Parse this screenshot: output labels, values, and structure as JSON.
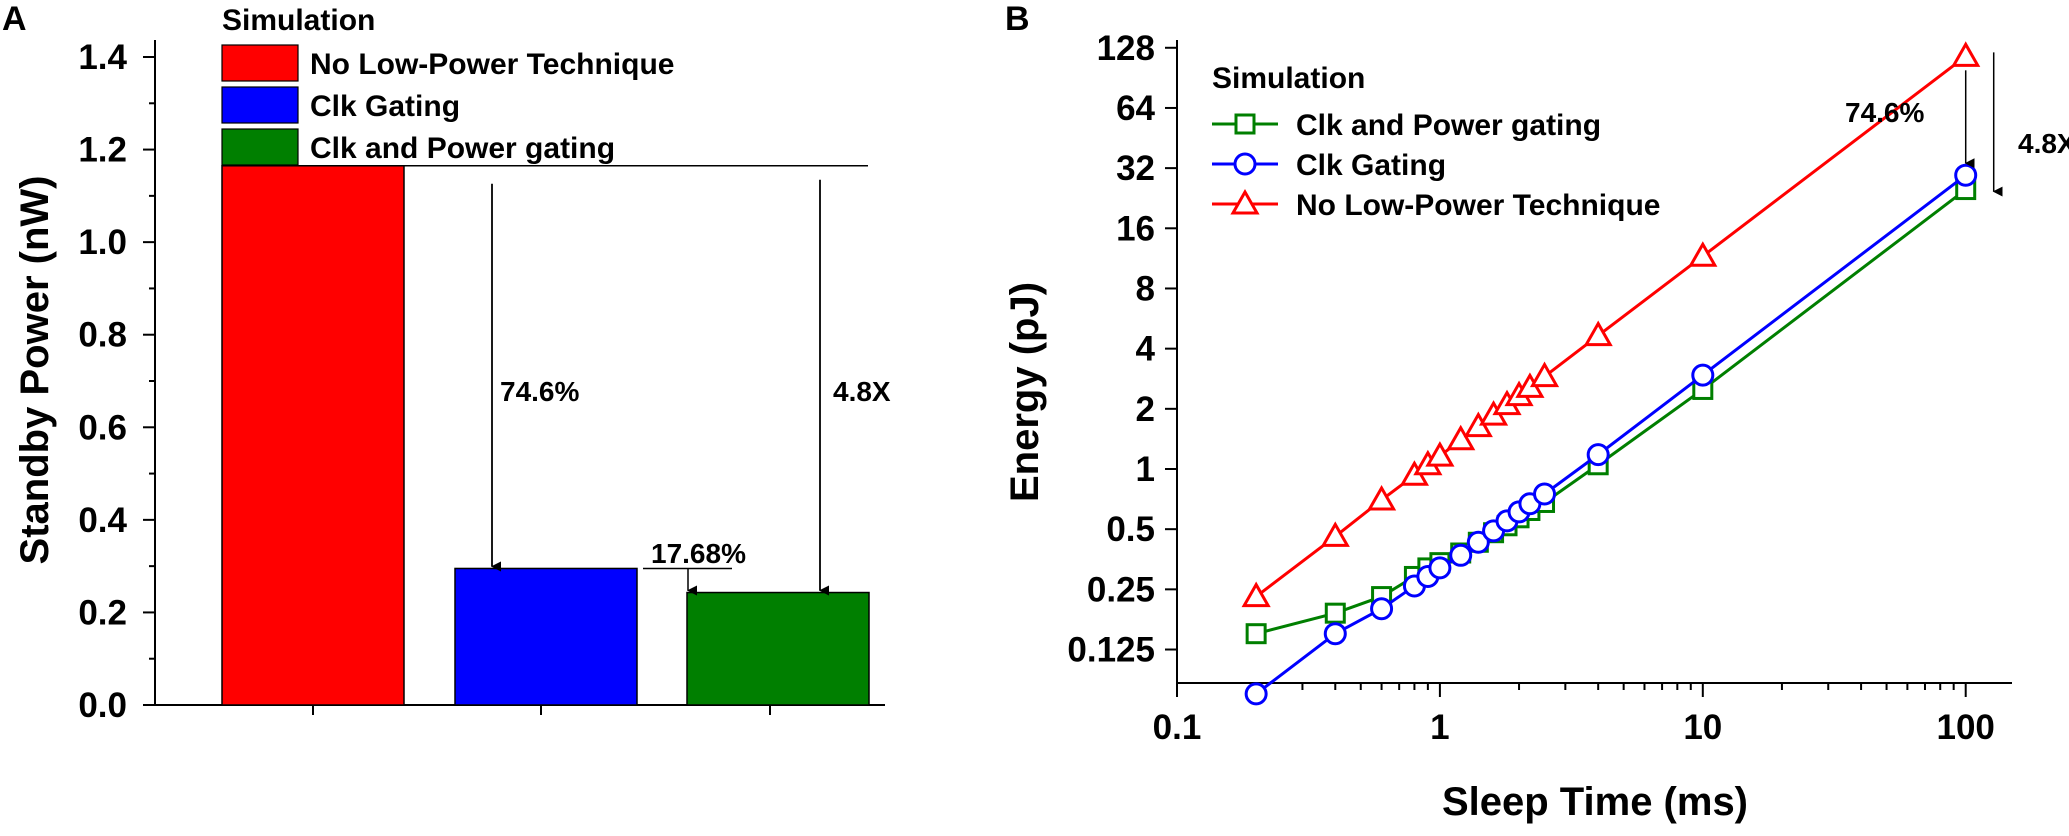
{
  "chart_data": [
    {
      "panel_label": "A",
      "type": "bar",
      "ylabel": "Standby Power (nW)",
      "xlabel": "",
      "ylim": [
        0,
        1.4
      ],
      "yticks": [
        "0.0",
        "0.2",
        "0.4",
        "0.6",
        "0.8",
        "1.0",
        "1.2",
        "1.4"
      ],
      "legend_title": "Simulation",
      "legend_position": "top",
      "series": [
        {
          "name": "No Low-Power Technique",
          "value": 1.165,
          "color": "#ff0000"
        },
        {
          "name": "Clk Gating",
          "value": 0.295,
          "color": "#0000ff"
        },
        {
          "name": "Clk and Power gating",
          "value": 0.243,
          "color": "#007f00"
        }
      ],
      "annotations": {
        "clk_gating_reduction": "74.6%",
        "power_gating_reduction": "17.68%",
        "total_reduction": "4.8X"
      }
    },
    {
      "panel_label": "B",
      "type": "line",
      "xscale": "log",
      "yscale": "log2",
      "xlabel": "Sleep Time (ms)",
      "ylabel": "Energy (pJ)",
      "xlim": [
        0.1,
        150
      ],
      "ylim": [
        0.085,
        140
      ],
      "xticks": [
        "0.1",
        "1",
        "10",
        "100"
      ],
      "yticks": [
        "0.125",
        "0.25",
        "0.5",
        "1",
        "2",
        "4",
        "8",
        "16",
        "32",
        "64",
        "128"
      ],
      "legend_title": "Simulation",
      "legend_position": "top-left",
      "series": [
        {
          "name": "Clk and Power gating",
          "color": "#007f00",
          "marker": "square",
          "x": [
            0.2,
            0.4,
            0.6,
            0.8,
            0.9,
            1.0,
            1.2,
            1.4,
            1.6,
            1.8,
            2.0,
            2.2,
            2.5,
            4,
            10,
            100
          ],
          "y": [
            0.15,
            0.19,
            0.23,
            0.29,
            0.32,
            0.34,
            0.38,
            0.43,
            0.48,
            0.52,
            0.57,
            0.62,
            0.68,
            1.05,
            2.5,
            25
          ]
        },
        {
          "name": "Clk Gating",
          "color": "#0000ff",
          "marker": "circle",
          "x": [
            0.2,
            0.4,
            0.6,
            0.8,
            0.9,
            1.0,
            1.2,
            1.4,
            1.6,
            1.8,
            2.0,
            2.2,
            2.5,
            4,
            10,
            100
          ],
          "y": [
            0.075,
            0.15,
            0.2,
            0.26,
            0.29,
            0.32,
            0.37,
            0.43,
            0.49,
            0.55,
            0.61,
            0.67,
            0.75,
            1.18,
            2.95,
            29.5
          ]
        },
        {
          "name": "No Low-Power Technique",
          "color": "#ff0000",
          "marker": "triangle",
          "x": [
            0.2,
            0.4,
            0.6,
            0.8,
            0.9,
            1.0,
            1.2,
            1.4,
            1.6,
            1.8,
            2.0,
            2.2,
            2.5,
            4,
            10,
            100
          ],
          "y": [
            0.23,
            0.46,
            0.7,
            0.93,
            1.05,
            1.16,
            1.4,
            1.63,
            1.86,
            2.1,
            2.33,
            2.56,
            2.9,
            4.65,
            11.6,
            116
          ]
        }
      ],
      "annotations": {
        "clk_gating_reduction": "74.6%",
        "total_reduction": "4.8X"
      }
    }
  ]
}
